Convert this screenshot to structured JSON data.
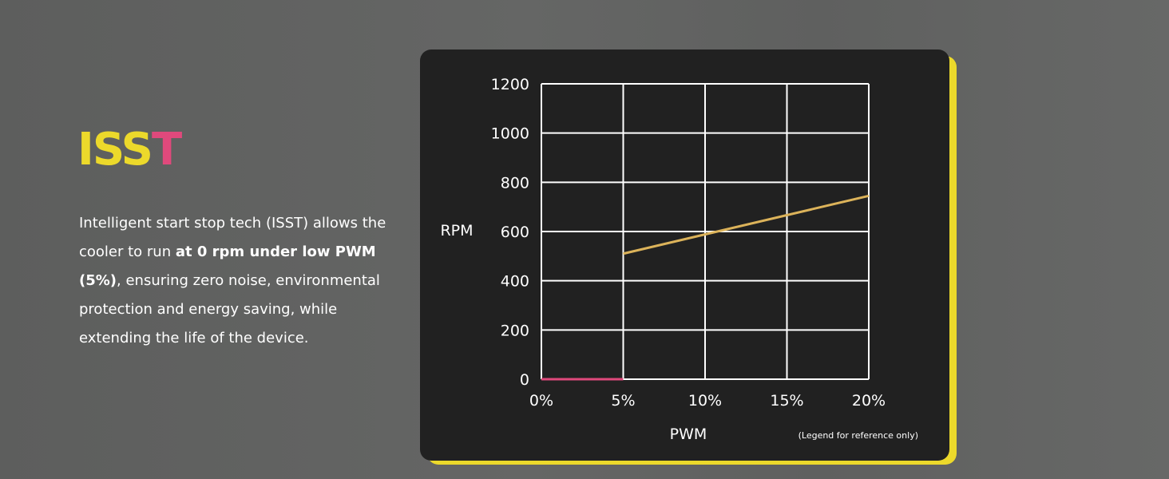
{
  "heading": {
    "part1": "ISS",
    "part2": "T"
  },
  "description": {
    "text1": "Intelligent start stop tech (ISST) allows the cooler to run ",
    "bold": "at 0 rpm under low PWM (5%)",
    "text2": ", ensuring zero noise, environmental protection and energy saving, while extending the life of the device."
  },
  "colors": {
    "accent_yellow": "#ecd92b",
    "accent_pink": "#e0497c",
    "card_background": "#212121",
    "line_active": "#dcb35a",
    "line_zero": "#e0497c"
  },
  "chart_data": {
    "type": "line",
    "xlabel": "PWM",
    "ylabel": "RPM",
    "x_ticks": [
      "0%",
      "5%",
      "10%",
      "15%",
      "20%"
    ],
    "y_ticks": [
      "0",
      "200",
      "400",
      "600",
      "800",
      "1000",
      "1200"
    ],
    "xlim": [
      0,
      20
    ],
    "ylim": [
      0,
      1200
    ],
    "grid": true,
    "note": "(Legend for reference only)",
    "series": [
      {
        "color": "#e0497c",
        "points": [
          [
            0,
            0
          ],
          [
            5,
            0
          ]
        ]
      },
      {
        "color": "#dcb35a",
        "points": [
          [
            5,
            510
          ],
          [
            20,
            745
          ]
        ]
      }
    ]
  }
}
